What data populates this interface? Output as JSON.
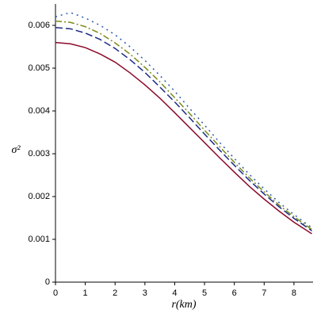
{
  "chart_data": {
    "type": "line",
    "x_label": "r(km)",
    "y_label": "σ²",
    "x": [
      0,
      0.5,
      1,
      1.5,
      2,
      2.5,
      3,
      3.5,
      4,
      4.5,
      5,
      5.5,
      6,
      6.5,
      7,
      7.5,
      8,
      8.6
    ],
    "series": [
      {
        "color": "#8b0a2a",
        "dash": "",
        "values": [
          0.0056,
          0.00557,
          0.00548,
          0.00533,
          0.00514,
          0.00489,
          0.00461,
          0.0043,
          0.00396,
          0.00361,
          0.00326,
          0.00291,
          0.00257,
          0.00224,
          0.00194,
          0.00166,
          0.0014,
          0.00113
        ]
      },
      {
        "color": "#1c2a85",
        "dash": "9 4",
        "values": [
          0.00595,
          0.00592,
          0.00582,
          0.00567,
          0.00546,
          0.0052,
          0.0049,
          0.00456,
          0.00421,
          0.00384,
          0.00346,
          0.00309,
          0.00273,
          0.00238,
          0.00206,
          0.00176,
          0.00149,
          0.0012
        ]
      },
      {
        "color": "#7a8a1a",
        "dash": "8 3 2 3",
        "values": [
          0.0061,
          0.00607,
          0.00597,
          0.00581,
          0.00559,
          0.00533,
          0.00502,
          0.00468,
          0.00431,
          0.00394,
          0.00355,
          0.00317,
          0.0028,
          0.00244,
          0.00211,
          0.0018,
          0.00153,
          0.00123
        ]
      },
      {
        "color": "#2a5aa8",
        "dash": "2 5",
        "values": [
          0.0062,
          0.0063,
          0.00617,
          0.006,
          0.00578,
          0.0055,
          0.00518,
          0.00483,
          0.00446,
          0.00406,
          0.00367,
          0.00327,
          0.00289,
          0.00252,
          0.00218,
          0.00186,
          0.00158,
          0.00127
        ]
      }
    ],
    "xlim": [
      0,
      8.64
    ],
    "ylim": [
      0,
      0.0065
    ],
    "xticks": [
      0,
      1,
      2,
      3,
      4,
      5,
      6,
      7,
      8
    ],
    "yticks": [
      0,
      0.001,
      0.002,
      0.003,
      0.004,
      0.005,
      0.006
    ]
  }
}
